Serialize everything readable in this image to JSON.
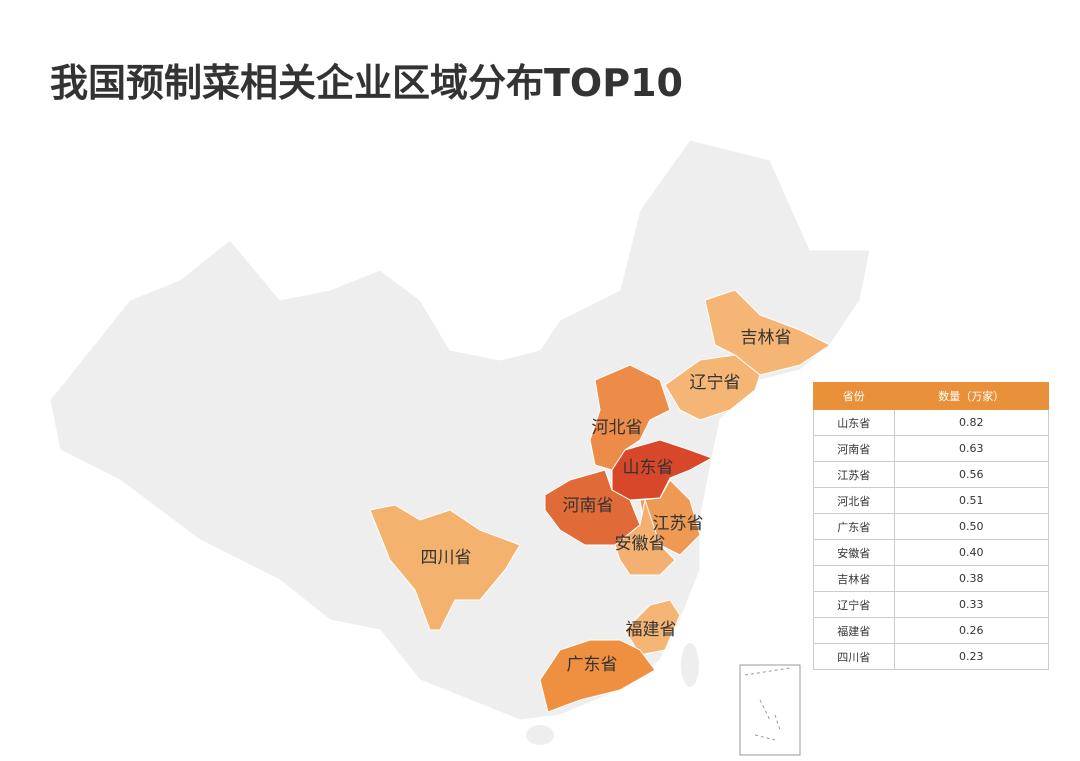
{
  "title": "我国预制菜相关企业区域分布TOP10",
  "map": {
    "regions": [
      {
        "label": "吉林省",
        "color": "#f5b675"
      },
      {
        "label": "辽宁省",
        "color": "#f5b675"
      },
      {
        "label": "河北省",
        "color": "#ec8c48"
      },
      {
        "label": "山东省",
        "color": "#d9472b"
      },
      {
        "label": "河南省",
        "color": "#e06a38"
      },
      {
        "label": "江苏省",
        "color": "#ee9a55"
      },
      {
        "label": "安徽省",
        "color": "#f3b070"
      },
      {
        "label": "四川省",
        "color": "#f3b36f"
      },
      {
        "label": "福建省",
        "color": "#f5b675"
      },
      {
        "label": "广东省",
        "color": "#ee9040"
      }
    ]
  },
  "table": {
    "header": [
      "省份",
      "数量（万家）"
    ],
    "rows": [
      [
        "山东省",
        "0.82"
      ],
      [
        "河南省",
        "0.63"
      ],
      [
        "江苏省",
        "0.56"
      ],
      [
        "河北省",
        "0.51"
      ],
      [
        "广东省",
        "0.50"
      ],
      [
        "安徽省",
        "0.40"
      ],
      [
        "吉林省",
        "0.38"
      ],
      [
        "辽宁省",
        "0.33"
      ],
      [
        "福建省",
        "0.26"
      ],
      [
        "四川省",
        "0.23"
      ]
    ]
  }
}
